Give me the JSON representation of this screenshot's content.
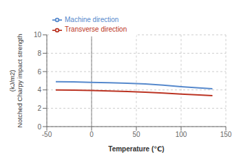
{
  "chart_data": {
    "type": "line",
    "title": "",
    "xlabel": "Temperature (℃)",
    "ylabel": "(kJ/m2)\nNotched Charpy impact strength",
    "x": [
      -40,
      -20,
      0,
      20,
      40,
      60,
      80,
      100,
      120,
      135
    ],
    "series": [
      {
        "name": "Machine direction",
        "color": "#5588CC",
        "values": [
          4.9,
          4.88,
          4.82,
          4.78,
          4.72,
          4.65,
          4.52,
          4.35,
          4.22,
          4.12
        ]
      },
      {
        "name": "Transverse direction",
        "color": "#BB3322",
        "values": [
          4.0,
          3.98,
          3.93,
          3.88,
          3.82,
          3.75,
          3.65,
          3.55,
          3.45,
          3.38
        ]
      }
    ],
    "vlines": [
      0
    ],
    "xlim": [
      -50,
      150
    ],
    "ylim": [
      0,
      10
    ],
    "xticks": [
      -50,
      0,
      50,
      100,
      150
    ],
    "yticks": [
      0,
      2,
      4,
      6,
      8,
      10
    ],
    "grid": true,
    "legend": "upper left"
  }
}
